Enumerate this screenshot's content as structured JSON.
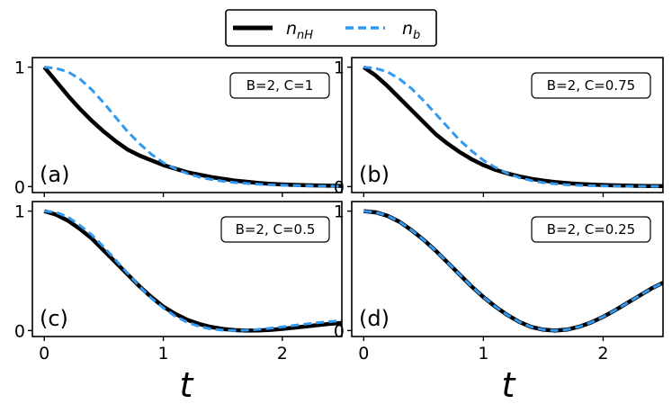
{
  "chart_data": {
    "type": "line",
    "layout": "2x2 grid of panels with shared x-axis per column",
    "xlabel": "t",
    "xlim": [
      -0.1,
      2.5
    ],
    "ylim": [
      -0.05,
      1.08
    ],
    "xticks": [
      "0",
      "1",
      "2"
    ],
    "yticks": [
      "0",
      "1"
    ],
    "grid": false,
    "legend": {
      "placement": "top-center, above panels",
      "entries": [
        {
          "base": "n",
          "sub": "nH",
          "style": "solid",
          "color": "#000000"
        },
        {
          "base": "n",
          "sub": "b",
          "style": "dashed",
          "color": "#3399ee"
        }
      ]
    },
    "x": [
      0,
      0.1,
      0.2,
      0.3,
      0.4,
      0.5,
      0.6,
      0.7,
      0.8,
      0.9,
      1.0,
      1.1,
      1.2,
      1.3,
      1.4,
      1.5,
      1.6,
      1.7,
      1.8,
      1.9,
      2.0,
      2.1,
      2.2,
      2.3,
      2.4,
      2.5
    ],
    "panels": [
      {
        "label": "(a)",
        "params": "B=2, C=1",
        "series": [
          {
            "values": [
              1.0,
              0.88,
              0.76,
              0.65,
              0.55,
              0.46,
              0.38,
              0.31,
              0.26,
              0.22,
              0.18,
              0.15,
              0.12,
              0.1,
              0.08,
              0.065,
              0.05,
              0.04,
              0.03,
              0.023,
              0.018,
              0.014,
              0.011,
              0.009,
              0.007,
              0.006
            ]
          },
          {
            "values": [
              1.0,
              0.99,
              0.96,
              0.9,
              0.81,
              0.7,
              0.58,
              0.46,
              0.36,
              0.27,
              0.2,
              0.15,
              0.11,
              0.08,
              0.06,
              0.045,
              0.034,
              0.026,
              0.02,
              0.015,
              0.011,
              0.009,
              0.007,
              0.005,
              0.004,
              0.003
            ]
          }
        ]
      },
      {
        "label": "(b)",
        "params": "B=2, C=0.75",
        "series": [
          {
            "values": [
              1.0,
              0.93,
              0.84,
              0.74,
              0.64,
              0.54,
              0.44,
              0.36,
              0.29,
              0.23,
              0.18,
              0.14,
              0.11,
              0.085,
              0.065,
              0.05,
              0.038,
              0.029,
              0.022,
              0.017,
              0.013,
              0.01,
              0.008,
              0.006,
              0.005,
              0.004
            ]
          },
          {
            "values": [
              1.0,
              0.99,
              0.96,
              0.9,
              0.82,
              0.72,
              0.61,
              0.5,
              0.39,
              0.3,
              0.22,
              0.16,
              0.11,
              0.075,
              0.05,
              0.033,
              0.022,
              0.015,
              0.01,
              0.007,
              0.005,
              0.004,
              0.003,
              0.002,
              0.002,
              0.001
            ]
          }
        ]
      },
      {
        "label": "(c)",
        "params": "B=2, C=0.5",
        "series": [
          {
            "values": [
              1.0,
              0.97,
              0.92,
              0.85,
              0.77,
              0.67,
              0.57,
              0.47,
              0.37,
              0.28,
              0.2,
              0.14,
              0.09,
              0.055,
              0.03,
              0.013,
              0.004,
              0.0,
              0.001,
              0.006,
              0.014,
              0.024,
              0.035,
              0.046,
              0.056,
              0.064
            ]
          },
          {
            "values": [
              1.0,
              0.99,
              0.95,
              0.88,
              0.8,
              0.7,
              0.59,
              0.48,
              0.37,
              0.27,
              0.19,
              0.12,
              0.07,
              0.035,
              0.013,
              0.003,
              0.0,
              0.003,
              0.01,
              0.02,
              0.031,
              0.043,
              0.055,
              0.066,
              0.075,
              0.082
            ]
          }
        ]
      },
      {
        "label": "(d)",
        "params": "B=2, C=0.25",
        "series": [
          {
            "values": [
              1.0,
              0.99,
              0.96,
              0.91,
              0.84,
              0.76,
              0.67,
              0.57,
              0.47,
              0.37,
              0.28,
              0.2,
              0.13,
              0.072,
              0.03,
              0.007,
              0.0,
              0.008,
              0.032,
              0.068,
              0.115,
              0.17,
              0.23,
              0.29,
              0.35,
              0.4
            ]
          },
          {
            "values": [
              1.0,
              0.99,
              0.96,
              0.91,
              0.84,
              0.76,
              0.67,
              0.57,
              0.47,
              0.37,
              0.28,
              0.2,
              0.13,
              0.072,
              0.03,
              0.007,
              0.0,
              0.008,
              0.032,
              0.068,
              0.115,
              0.17,
              0.23,
              0.29,
              0.35,
              0.4
            ]
          }
        ]
      }
    ]
  }
}
